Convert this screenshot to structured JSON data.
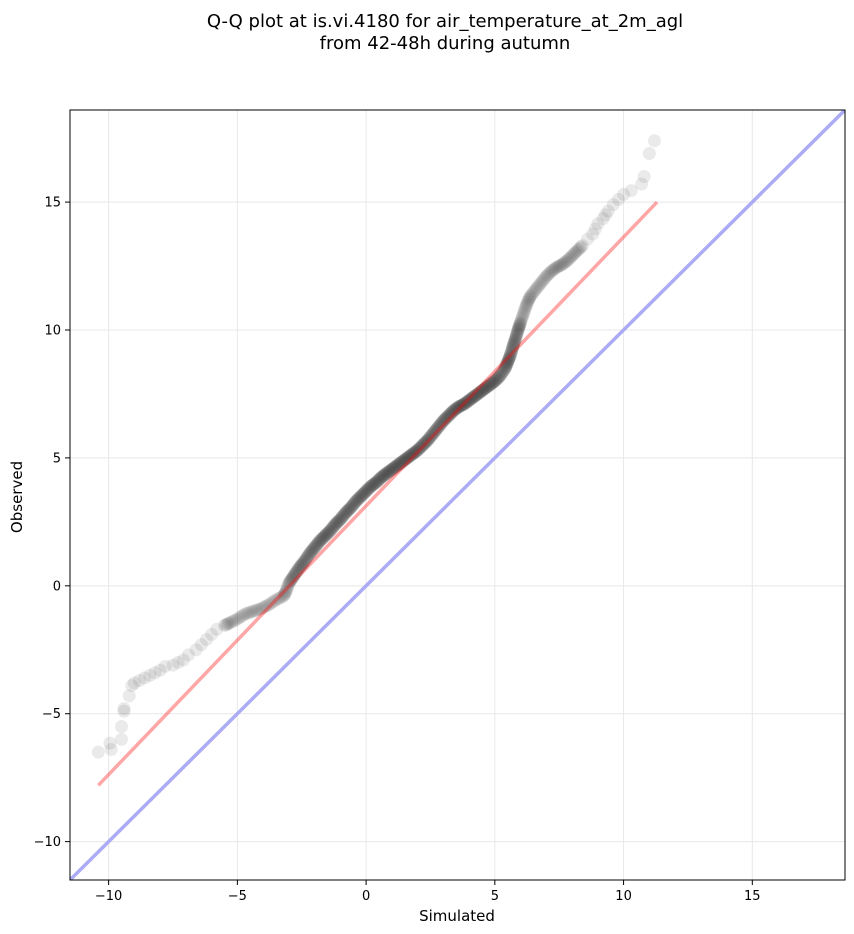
{
  "chart_data": {
    "type": "scatter",
    "title_lines": [
      "Q-Q plot at is.vi.4180 for air_temperature_at_2m_agl",
      "from 42-48h during autumn"
    ],
    "xlabel": "Simulated",
    "ylabel": "Observed",
    "xlim": [
      -11.5,
      18.6
    ],
    "ylim": [
      -11.5,
      18.6
    ],
    "x_ticks": [
      -10,
      -5,
      0,
      5,
      10,
      15
    ],
    "y_ticks": [
      -10,
      -5,
      0,
      5,
      10,
      15
    ],
    "x_tick_labels": [
      "−10",
      "−5",
      "0",
      "5",
      "10",
      "15"
    ],
    "y_tick_labels": [
      "−10",
      "−5",
      "0",
      "5",
      "10",
      "15"
    ],
    "grid": true,
    "colors": {
      "points": "#333333",
      "fit_line": "#ff9a9a",
      "identity_line": "#a6a6f5",
      "grid": "#e8e8e8"
    },
    "fit_line": {
      "x": [
        -10.4,
        11.3
      ],
      "y": [
        -7.8,
        15.0
      ]
    },
    "identity_line": {
      "x": [
        -11.5,
        18.6
      ],
      "y": [
        -11.5,
        18.6
      ]
    },
    "points": {
      "x": [
        -10.4,
        -9.9,
        -9.95,
        -9.5,
        -9.5,
        -9.4,
        -9.4,
        -9.2,
        -9.1,
        -9.0,
        -8.8,
        -8.6,
        -8.4,
        -8.2,
        -8.0,
        -7.8,
        -7.5,
        -7.3,
        -7.1,
        -6.9,
        -6.6,
        -6.4,
        -6.2,
        -6.0,
        -5.8,
        -5.5,
        -5.3,
        -5.0,
        -4.7,
        -4.4,
        -4.1,
        -3.8,
        -3.5,
        -3.2,
        -3.1,
        -3.0,
        -2.8,
        -2.6,
        -2.4,
        -2.2,
        -2.0,
        -1.8,
        -1.6,
        -1.4,
        -1.2,
        -1.0,
        -0.8,
        -0.6,
        -0.4,
        -0.2,
        0.0,
        0.2,
        0.4,
        0.6,
        0.8,
        1.0,
        1.2,
        1.4,
        1.6,
        1.8,
        2.0,
        2.2,
        2.4,
        2.6,
        2.8,
        3.0,
        3.2,
        3.4,
        3.6,
        3.8,
        4.0,
        4.2,
        4.4,
        4.6,
        4.8,
        5.0,
        5.2,
        5.4,
        5.5,
        5.6,
        5.7,
        5.8,
        5.9,
        6.0,
        6.1,
        6.2,
        6.3,
        6.4,
        6.6,
        6.8,
        7.0,
        7.2,
        7.4,
        7.6,
        7.8,
        8.0,
        8.2,
        8.4,
        8.6,
        8.8,
        8.9,
        9.0,
        9.2,
        9.3,
        9.4,
        9.6,
        9.8,
        10.0,
        10.3,
        10.7,
        10.8,
        11.0,
        11.2
      ],
      "y": [
        -6.5,
        -6.4,
        -6.15,
        -6.0,
        -5.5,
        -4.9,
        -4.8,
        -4.3,
        -3.9,
        -3.8,
        -3.7,
        -3.6,
        -3.5,
        -3.4,
        -3.3,
        -3.15,
        -3.1,
        -3.0,
        -2.9,
        -2.7,
        -2.5,
        -2.3,
        -2.1,
        -1.9,
        -1.7,
        -1.55,
        -1.45,
        -1.3,
        -1.1,
        -1.0,
        -0.9,
        -0.75,
        -0.55,
        -0.4,
        -0.2,
        0.1,
        0.4,
        0.7,
        0.95,
        1.25,
        1.5,
        1.75,
        1.95,
        2.15,
        2.4,
        2.6,
        2.85,
        3.05,
        3.3,
        3.5,
        3.7,
        3.9,
        4.05,
        4.25,
        4.4,
        4.55,
        4.7,
        4.85,
        5.0,
        5.15,
        5.3,
        5.5,
        5.7,
        5.95,
        6.2,
        6.45,
        6.65,
        6.85,
        7.0,
        7.1,
        7.25,
        7.4,
        7.55,
        7.7,
        7.85,
        8.0,
        8.2,
        8.5,
        8.75,
        9.0,
        9.35,
        9.65,
        10.0,
        10.3,
        10.6,
        10.9,
        11.15,
        11.35,
        11.6,
        11.85,
        12.1,
        12.3,
        12.45,
        12.55,
        12.7,
        12.9,
        13.1,
        13.3,
        13.55,
        13.75,
        13.95,
        14.15,
        14.35,
        14.5,
        14.65,
        14.9,
        15.1,
        15.3,
        15.45,
        15.7,
        16.0,
        16.9,
        17.4
      ]
    }
  }
}
